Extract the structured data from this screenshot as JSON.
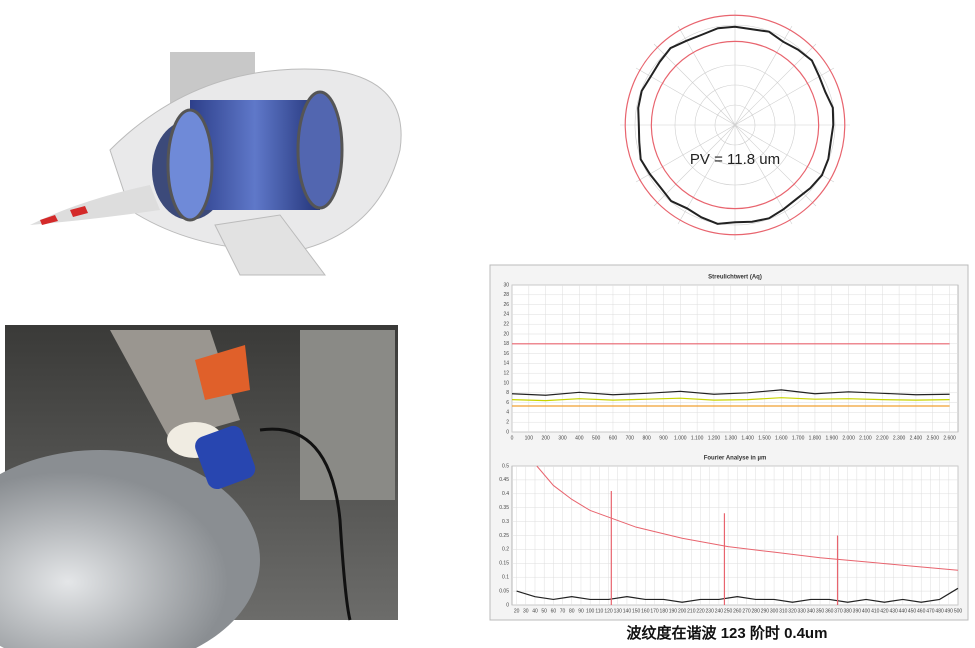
{
  "chart_data": [
    {
      "type": "polar",
      "annotation": "PV = 11.8 um",
      "rlim": [
        0,
        1.1
      ],
      "r": [
        0.94,
        0.93,
        0.95,
        0.92,
        0.94,
        0.96,
        0.93,
        0.92,
        0.95,
        0.94,
        0.93,
        0.95,
        0.96,
        0.94,
        0.92,
        0.93,
        0.95,
        0.94,
        0.93,
        0.96,
        0.94,
        0.92,
        0.95,
        0.93,
        0.94,
        0.96,
        0.93,
        0.92,
        0.94,
        0.95,
        0.93,
        0.94,
        0.96,
        0.93,
        0.92,
        0.94
      ],
      "limits": [
        1.05,
        0.8
      ],
      "limit_color": "#e8646e",
      "color": "#222222"
    },
    {
      "type": "line",
      "title": "Streulichtwert (Aq)",
      "x": [
        0,
        200,
        400,
        600,
        800,
        1000,
        1200,
        1400,
        1600,
        1800,
        2000,
        2200,
        2400,
        2600
      ],
      "series": [
        {
          "color": "#222222",
          "values": [
            7.8,
            7.5,
            8.1,
            7.6,
            7.9,
            8.3,
            7.7,
            8.0,
            8.6,
            7.8,
            8.2,
            7.9,
            7.6,
            7.7
          ]
        },
        {
          "color": "#c8d400",
          "values": [
            6.6,
            6.4,
            6.8,
            6.5,
            6.7,
            6.9,
            6.5,
            6.6,
            7.0,
            6.7,
            6.8,
            6.6,
            6.5,
            6.6
          ]
        },
        {
          "color": "#e8646e",
          "values": [
            18,
            18,
            18,
            18,
            18,
            18,
            18,
            18,
            18,
            18,
            18,
            18,
            18,
            18
          ]
        },
        {
          "color": "#f0a030",
          "values": [
            5.3,
            5.3,
            5.3,
            5.3,
            5.3,
            5.3,
            5.3,
            5.3,
            5.3,
            5.3,
            5.3,
            5.3,
            5.3,
            5.3
          ]
        }
      ],
      "xlim": [
        0,
        2650
      ],
      "ylim": [
        0,
        30
      ],
      "xticks": [
        0,
        100,
        200,
        300,
        400,
        500,
        600,
        700,
        800,
        900,
        {
          "value": 1000,
          "label": "1.000"
        },
        {
          "value": 1100,
          "label": "1.100"
        },
        {
          "value": 1200,
          "label": "1.200"
        },
        {
          "value": 1300,
          "label": "1.300"
        },
        {
          "value": 1400,
          "label": "1.400"
        },
        {
          "value": 1500,
          "label": "1.500"
        },
        {
          "value": 1600,
          "label": "1.600"
        },
        {
          "value": 1700,
          "label": "1.700"
        },
        {
          "value": 1800,
          "label": "1.800"
        },
        {
          "value": 1900,
          "label": "1.900"
        },
        {
          "value": 2000,
          "label": "2.000"
        },
        {
          "value": 2100,
          "label": "2.100"
        },
        {
          "value": 2200,
          "label": "2.200"
        },
        {
          "value": 2300,
          "label": "2.300"
        },
        {
          "value": 2400,
          "label": "2.400"
        },
        {
          "value": 2500,
          "label": "2.500"
        },
        {
          "value": 2600,
          "label": "2.600"
        }
      ],
      "yticks": [
        0,
        2,
        4,
        6,
        8,
        10,
        12,
        14,
        16,
        18,
        20,
        22,
        24,
        26,
        28,
        30
      ],
      "grid": true
    },
    {
      "type": "line",
      "title": "Fourier Analyse in µm",
      "x": [
        20,
        40,
        60,
        80,
        100,
        120,
        140,
        160,
        180,
        200,
        220,
        240,
        260,
        280,
        300,
        320,
        340,
        360,
        380,
        400,
        420,
        440,
        460,
        480,
        500
      ],
      "series": [
        {
          "color": "#222222",
          "values": [
            0.05,
            0.03,
            0.02,
            0.03,
            0.02,
            0.02,
            0.03,
            0.02,
            0.02,
            0.01,
            0.02,
            0.02,
            0.03,
            0.02,
            0.02,
            0.01,
            0.02,
            0.02,
            0.01,
            0.02,
            0.01,
            0.02,
            0.01,
            0.02,
            0.06
          ]
        }
      ],
      "curve": {
        "color": "#e8646e",
        "x": [
          42,
          60,
          80,
          100,
          150,
          200,
          250,
          300,
          350,
          400,
          450,
          500
        ],
        "values": [
          0.5,
          0.43,
          0.38,
          0.34,
          0.28,
          0.24,
          0.21,
          0.19,
          0.17,
          0.155,
          0.14,
          0.125
        ]
      },
      "peaks": {
        "color": "#e8646e",
        "x": [
          123,
          246,
          369
        ],
        "values": [
          0.41,
          0.33,
          0.25
        ]
      },
      "xlim": [
        15,
        500
      ],
      "ylim": [
        0,
        0.5
      ],
      "xticks": [
        20,
        30,
        40,
        50,
        60,
        70,
        80,
        90,
        100,
        110,
        120,
        130,
        140,
        150,
        160,
        170,
        180,
        190,
        200,
        210,
        220,
        230,
        240,
        250,
        260,
        270,
        280,
        290,
        300,
        310,
        320,
        330,
        340,
        350,
        360,
        370,
        380,
        390,
        400,
        410,
        420,
        430,
        440,
        450,
        460,
        470,
        480,
        490,
        500
      ],
      "yticks": [
        0,
        0.05,
        0.1,
        0.15,
        0.2,
        0.25,
        0.3,
        0.35,
        0.4,
        0.45,
        0.5
      ],
      "grid": true
    }
  ],
  "caption": "波纹度在谐波 123 阶时 0.4um"
}
